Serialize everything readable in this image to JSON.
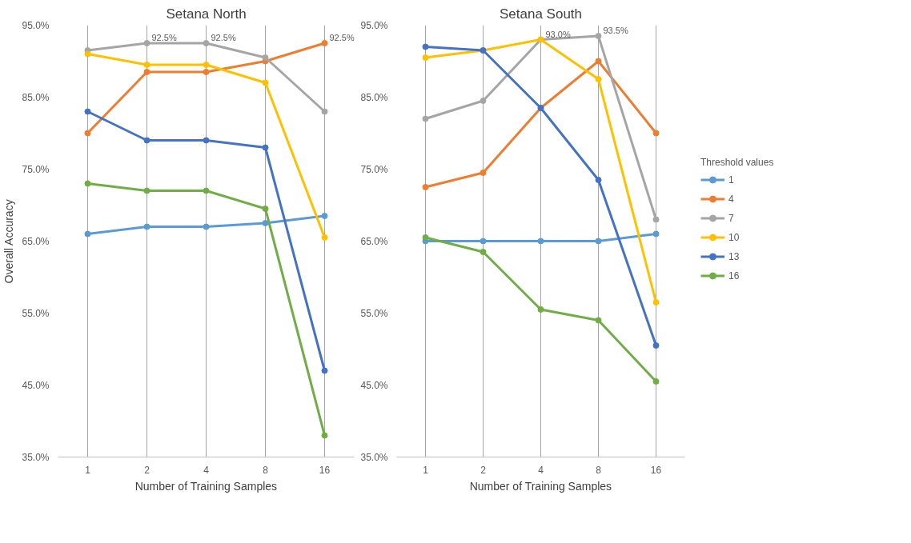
{
  "chart_data": [
    {
      "type": "line",
      "title": "Setana North",
      "xlabel": "Number of Training Samples",
      "ylabel": "Overall Accuracy",
      "categories": [
        "1",
        "2",
        "4",
        "8",
        "16"
      ],
      "ylim": [
        35,
        95
      ],
      "yticks": [
        {
          "value": 35,
          "label": "35.0%"
        },
        {
          "value": 45,
          "label": "45.0%"
        },
        {
          "value": 55,
          "label": "55.0%"
        },
        {
          "value": 65,
          "label": "65.0%"
        },
        {
          "value": 75,
          "label": "75.0%"
        },
        {
          "value": 85,
          "label": "85.0%"
        },
        {
          "value": 95,
          "label": "95.0%"
        }
      ],
      "grid": "x",
      "marker": "circle",
      "line_style": "solid",
      "legend": false,
      "series": [
        {
          "color": "#5b9bd5",
          "values": [
            66.0,
            67.0,
            67.0,
            67.5,
            68.5
          ]
        },
        {
          "color": "#ed7d31",
          "values": [
            80.0,
            88.5,
            88.5,
            90.0,
            92.5
          ]
        },
        {
          "color": "#a5a5a5",
          "values": [
            91.5,
            92.5,
            92.5,
            90.5,
            83.0
          ]
        },
        {
          "color": "#ffc000",
          "values": [
            91.0,
            89.5,
            89.5,
            87.0,
            65.5
          ]
        },
        {
          "color": "#4472c4",
          "values": [
            83.0,
            79.0,
            79.0,
            78.0,
            47.0
          ]
        },
        {
          "color": "#70ad47",
          "values": [
            73.0,
            72.0,
            72.0,
            69.5,
            38.0
          ]
        }
      ],
      "annotations": [
        {
          "text": "92.5%",
          "x": "2",
          "y": 92.5
        },
        {
          "text": "92.5%",
          "x": "4",
          "y": 92.5
        },
        {
          "text": "92.5%",
          "x": "16",
          "y": 92.5
        }
      ]
    },
    {
      "type": "line",
      "title": "Setana South",
      "xlabel": "Number of Training Samples",
      "categories": [
        "1",
        "2",
        "4",
        "8",
        "16"
      ],
      "ylim": [
        35,
        95
      ],
      "yticks": [
        {
          "value": 35,
          "label": "35.0%"
        },
        {
          "value": 45,
          "label": "45.0%"
        },
        {
          "value": 55,
          "label": "55.0%"
        },
        {
          "value": 65,
          "label": "65.0%"
        },
        {
          "value": 75,
          "label": "75.0%"
        },
        {
          "value": 85,
          "label": "85.0%"
        },
        {
          "value": 95,
          "label": "95.0%"
        }
      ],
      "grid": "x",
      "marker": "circle",
      "line_style": "solid",
      "legend": "right",
      "legend_title": "Threshold values",
      "series": [
        {
          "name": "1",
          "color": "#5b9bd5",
          "values": [
            65.0,
            65.0,
            65.0,
            65.0,
            66.0
          ]
        },
        {
          "name": "4",
          "color": "#ed7d31",
          "values": [
            72.5,
            74.5,
            83.5,
            90.0,
            80.0
          ]
        },
        {
          "name": "7",
          "color": "#a5a5a5",
          "values": [
            82.0,
            84.5,
            93.0,
            93.5,
            68.0
          ]
        },
        {
          "name": "10",
          "color": "#ffc000",
          "values": [
            90.5,
            91.5,
            93.0,
            87.5,
            56.5
          ]
        },
        {
          "name": "13",
          "color": "#4472c4",
          "values": [
            92.0,
            91.5,
            83.5,
            73.5,
            50.5
          ]
        },
        {
          "name": "16",
          "color": "#70ad47",
          "values": [
            65.5,
            63.5,
            55.5,
            54.0,
            45.5
          ]
        }
      ],
      "annotations": [
        {
          "text": "93.0%",
          "x": "4",
          "y": 93.0
        },
        {
          "text": "93.5%",
          "x": "8",
          "y": 93.5
        }
      ]
    }
  ]
}
